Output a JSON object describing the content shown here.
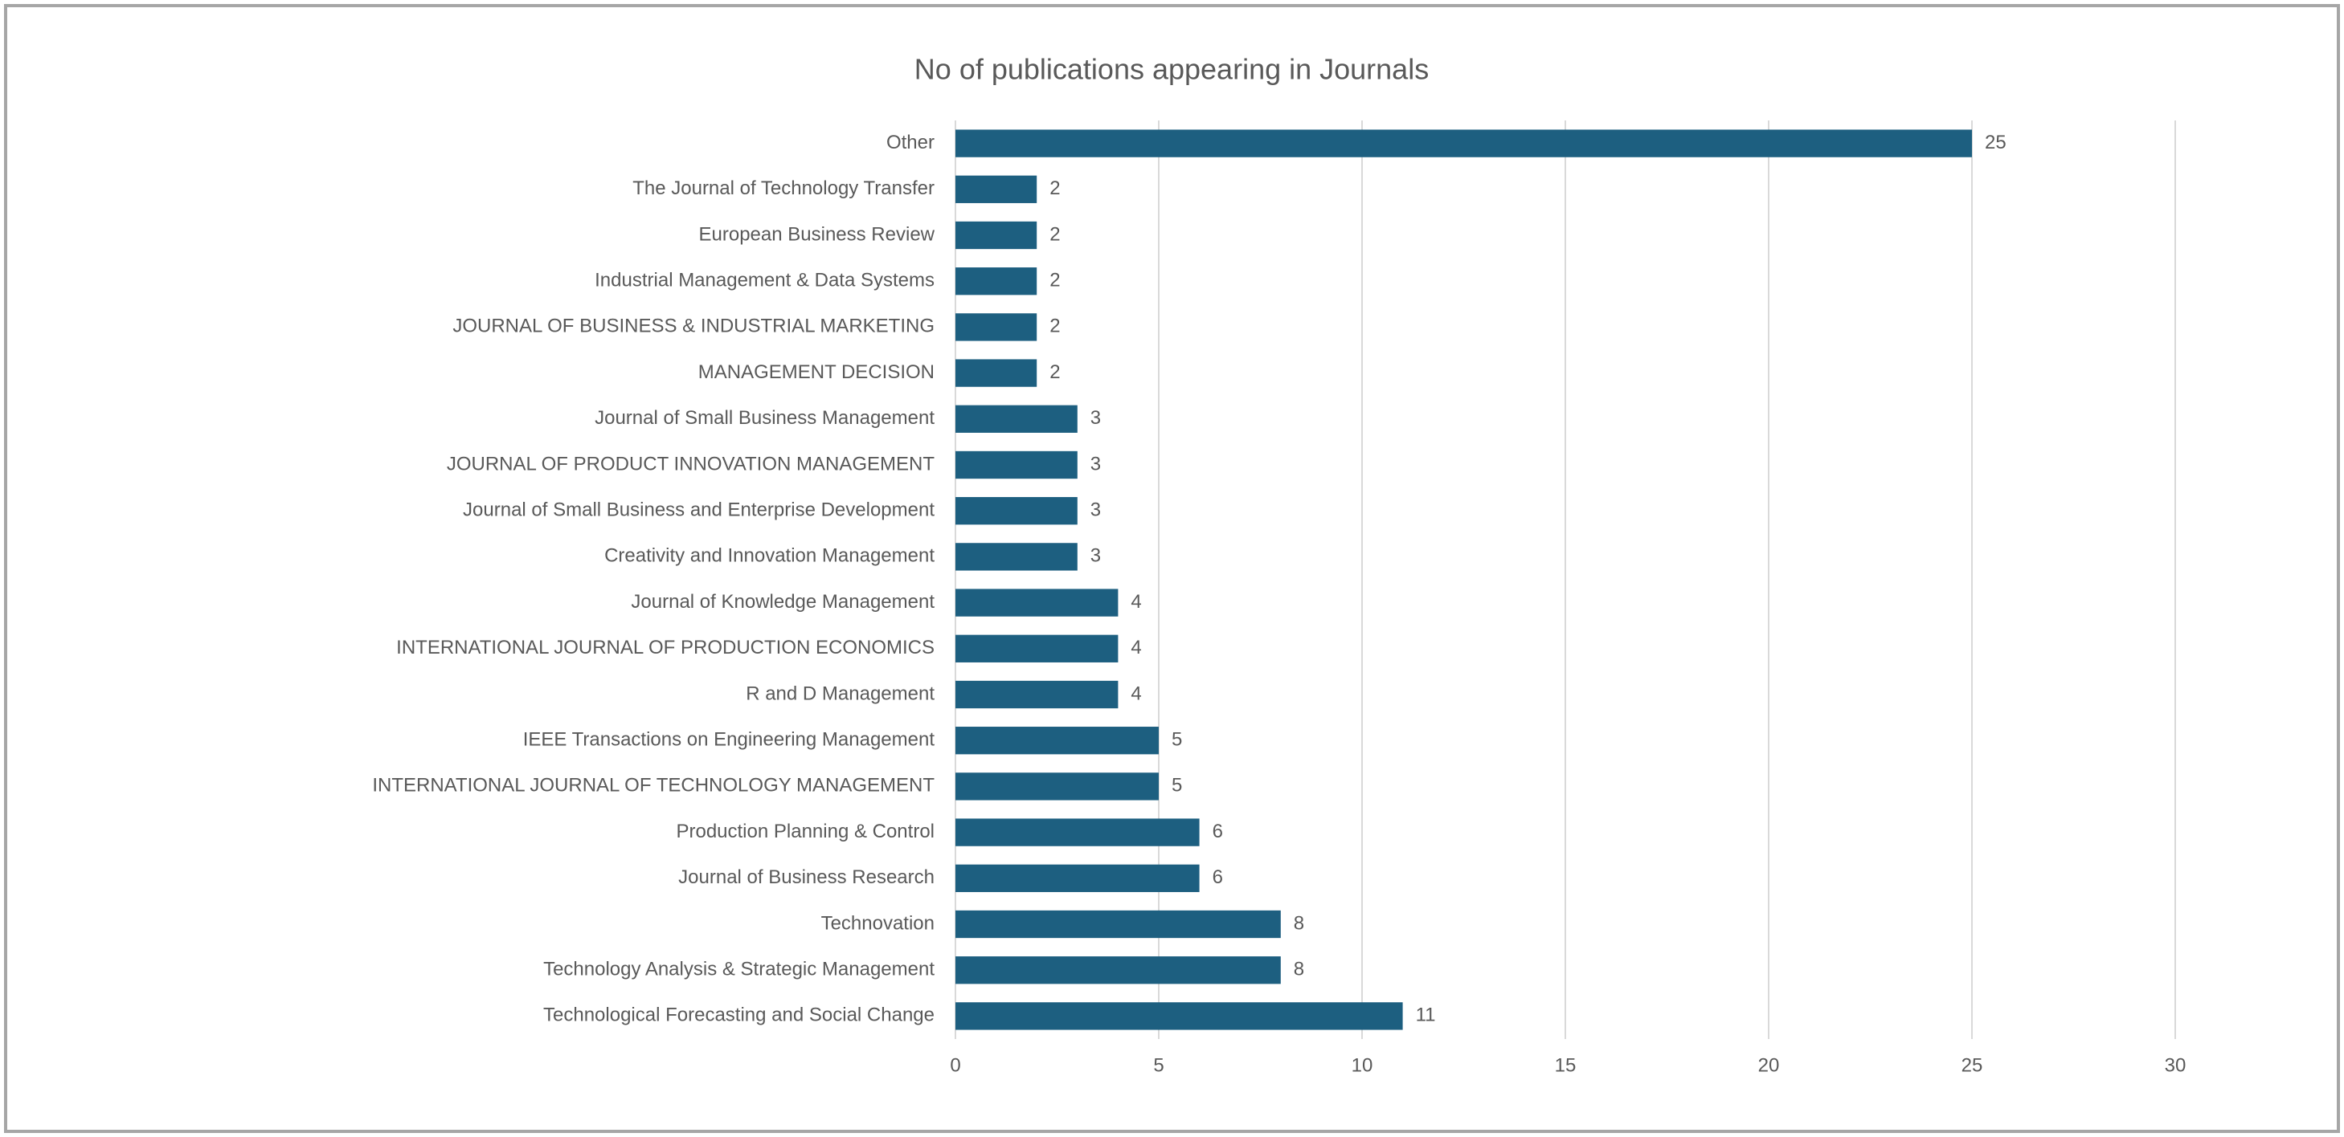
{
  "chart_data": {
    "type": "barh",
    "title": "No of publications appearing in Journals",
    "categories": [
      "Other",
      "The Journal of Technology Transfer",
      "European Business Review",
      "Industrial Management & Data Systems",
      "JOURNAL OF BUSINESS & INDUSTRIAL MARKETING",
      "MANAGEMENT DECISION",
      "Journal of Small Business Management",
      "JOURNAL OF PRODUCT INNOVATION MANAGEMENT",
      "Journal of Small Business and Enterprise Development",
      "Creativity and Innovation Management",
      "Journal of Knowledge Management",
      "INTERNATIONAL JOURNAL OF PRODUCTION ECONOMICS",
      "R and D Management",
      "IEEE Transactions on Engineering Management",
      "INTERNATIONAL JOURNAL OF TECHNOLOGY MANAGEMENT",
      "Production Planning & Control",
      "Journal of Business Research",
      "Technovation",
      "Technology Analysis & Strategic Management",
      "Technological Forecasting and Social Change"
    ],
    "values": [
      25,
      2,
      2,
      2,
      2,
      2,
      3,
      3,
      3,
      3,
      4,
      4,
      4,
      5,
      5,
      6,
      6,
      8,
      8,
      11
    ],
    "color": "#1d5f80",
    "xlim": [
      0,
      30
    ],
    "xticks": [
      0,
      5,
      10,
      15,
      20,
      25,
      30
    ],
    "grid": true
  }
}
